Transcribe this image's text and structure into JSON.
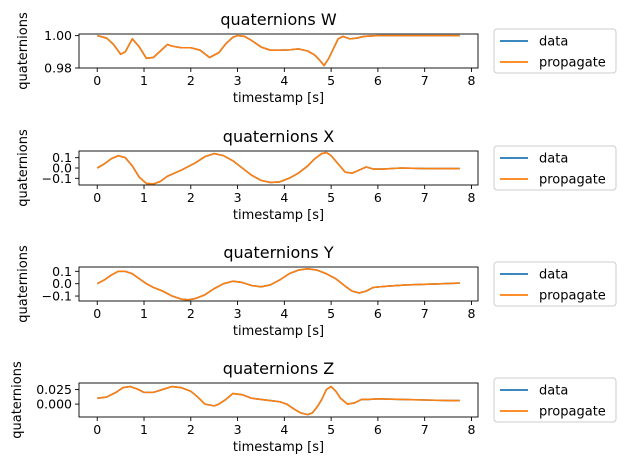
{
  "chart_data": [
    {
      "type": "line",
      "title": "quaternions W",
      "xlabel": "timestamp [s]",
      "ylabel": "quaternions",
      "xlim": [
        -0.39,
        8.14
      ],
      "ylim": [
        0.98,
        1.001
      ],
      "xticks": [
        "0",
        "1",
        "2",
        "3",
        "4",
        "5",
        "6",
        "7",
        "8"
      ],
      "yticks": [
        {
          "value": 0.98,
          "label": "0.98"
        },
        {
          "value": 1.0,
          "label": "1.00"
        }
      ],
      "legend": {
        "position": "outside-right",
        "entries": [
          "data",
          "propagate"
        ]
      },
      "grid": false,
      "x": [
        0.0,
        0.2,
        0.35,
        0.5,
        0.6,
        0.75,
        0.9,
        1.05,
        1.2,
        1.35,
        1.5,
        1.6,
        1.8,
        2.0,
        2.2,
        2.4,
        2.6,
        2.75,
        2.9,
        3.0,
        3.15,
        3.3,
        3.5,
        3.7,
        3.9,
        4.1,
        4.3,
        4.5,
        4.65,
        4.75,
        4.85,
        4.95,
        5.05,
        5.15,
        5.25,
        5.4,
        5.55,
        5.7,
        5.85,
        6.0,
        6.5,
        7.0,
        7.5,
        7.75
      ],
      "series": [
        {
          "name": "data",
          "color": "#1f77b4",
          "values": [
            1.0,
            0.9985,
            0.9945,
            0.9885,
            0.99,
            0.998,
            0.993,
            0.986,
            0.9865,
            0.9905,
            0.9945,
            0.9935,
            0.9925,
            0.9925,
            0.991,
            0.9865,
            0.9895,
            0.995,
            0.999,
            1.0,
            0.9995,
            0.997,
            0.993,
            0.991,
            0.991,
            0.9912,
            0.9918,
            0.9905,
            0.988,
            0.985,
            0.9815,
            0.986,
            0.992,
            0.998,
            0.9995,
            0.998,
            0.9985,
            0.9995,
            0.9998,
            1.0,
            1.0,
            1.0,
            1.0,
            1.0
          ]
        },
        {
          "name": "propagate",
          "color": "#ff7f0e",
          "values": [
            1.0,
            0.9985,
            0.9945,
            0.9885,
            0.99,
            0.998,
            0.993,
            0.986,
            0.9865,
            0.9905,
            0.9945,
            0.9935,
            0.9925,
            0.9925,
            0.991,
            0.9865,
            0.9895,
            0.995,
            0.999,
            1.0,
            0.9995,
            0.997,
            0.993,
            0.991,
            0.991,
            0.9912,
            0.9918,
            0.9905,
            0.988,
            0.985,
            0.9815,
            0.986,
            0.992,
            0.998,
            0.9995,
            0.998,
            0.9985,
            0.9995,
            0.9998,
            1.0,
            1.0,
            1.0,
            1.0,
            1.0
          ]
        }
      ]
    },
    {
      "type": "line",
      "title": "quaternions X",
      "xlabel": "timestamp [s]",
      "ylabel": "quaternions",
      "xlim": [
        -0.39,
        8.14
      ],
      "ylim": [
        -0.165,
        0.165
      ],
      "xticks": [
        "0",
        "1",
        "2",
        "3",
        "4",
        "5",
        "6",
        "7",
        "8"
      ],
      "yticks": [
        {
          "value": 0.1,
          "label": "0.1"
        },
        {
          "value": 0.0,
          "label": "0.0"
        },
        {
          "value": -0.1,
          "label": "−0.1"
        }
      ],
      "legend": {
        "position": "outside-right",
        "entries": [
          "data",
          "propagate"
        ]
      },
      "grid": false,
      "x": [
        0.0,
        0.15,
        0.3,
        0.45,
        0.6,
        0.75,
        0.9,
        1.05,
        1.2,
        1.35,
        1.5,
        1.8,
        2.1,
        2.3,
        2.5,
        2.7,
        2.9,
        3.1,
        3.3,
        3.5,
        3.7,
        3.9,
        4.1,
        4.3,
        4.5,
        4.65,
        4.8,
        4.9,
        5.0,
        5.15,
        5.3,
        5.45,
        5.6,
        5.75,
        5.9,
        6.1,
        6.5,
        7.0,
        7.5,
        7.75
      ],
      "series": [
        {
          "name": "data",
          "color": "#1f77b4",
          "values": [
            0.0,
            0.04,
            0.09,
            0.12,
            0.1,
            0.02,
            -0.09,
            -0.15,
            -0.155,
            -0.13,
            -0.08,
            -0.02,
            0.05,
            0.11,
            0.14,
            0.12,
            0.07,
            0.0,
            -0.07,
            -0.12,
            -0.14,
            -0.135,
            -0.1,
            -0.05,
            0.02,
            0.09,
            0.14,
            0.15,
            0.12,
            0.04,
            -0.04,
            -0.05,
            -0.02,
            0.01,
            -0.01,
            -0.01,
            0.0,
            -0.005,
            -0.005,
            -0.005
          ]
        },
        {
          "name": "propagate",
          "color": "#ff7f0e",
          "values": [
            0.0,
            0.04,
            0.09,
            0.12,
            0.1,
            0.02,
            -0.09,
            -0.15,
            -0.155,
            -0.13,
            -0.08,
            -0.02,
            0.05,
            0.11,
            0.14,
            0.12,
            0.07,
            0.0,
            -0.07,
            -0.12,
            -0.14,
            -0.135,
            -0.1,
            -0.05,
            0.02,
            0.09,
            0.14,
            0.15,
            0.12,
            0.04,
            -0.04,
            -0.05,
            -0.02,
            0.01,
            -0.01,
            -0.01,
            0.0,
            -0.005,
            -0.005,
            -0.005
          ]
        }
      ]
    },
    {
      "type": "line",
      "title": "quaternions Y",
      "xlabel": "timestamp [s]",
      "ylabel": "quaternions",
      "xlim": [
        -0.39,
        8.14
      ],
      "ylim": [
        -0.14,
        0.135
      ],
      "xticks": [
        "0",
        "1",
        "2",
        "3",
        "4",
        "5",
        "6",
        "7",
        "8"
      ],
      "yticks": [
        {
          "value": 0.1,
          "label": "0.1"
        },
        {
          "value": 0.0,
          "label": "0.0"
        },
        {
          "value": -0.1,
          "label": "−0.1"
        }
      ],
      "legend": {
        "position": "outside-right",
        "entries": [
          "data",
          "propagate"
        ]
      },
      "grid": false,
      "x": [
        0.0,
        0.15,
        0.3,
        0.45,
        0.6,
        0.75,
        0.9,
        1.05,
        1.2,
        1.4,
        1.6,
        1.8,
        1.95,
        2.1,
        2.3,
        2.5,
        2.7,
        2.9,
        3.1,
        3.3,
        3.5,
        3.7,
        3.9,
        4.1,
        4.3,
        4.5,
        4.7,
        4.9,
        5.1,
        5.3,
        5.45,
        5.6,
        5.75,
        5.9,
        6.2,
        6.6,
        7.0,
        7.4,
        7.75
      ],
      "series": [
        {
          "name": "data",
          "color": "#1f77b4",
          "values": [
            0.0,
            0.03,
            0.07,
            0.1,
            0.1,
            0.08,
            0.04,
            0.0,
            -0.03,
            -0.06,
            -0.1,
            -0.125,
            -0.13,
            -0.12,
            -0.09,
            -0.04,
            0.0,
            0.02,
            0.01,
            -0.015,
            -0.025,
            -0.01,
            0.03,
            0.08,
            0.11,
            0.12,
            0.11,
            0.08,
            0.04,
            -0.02,
            -0.06,
            -0.075,
            -0.06,
            -0.03,
            -0.02,
            -0.01,
            -0.005,
            0.0,
            0.005
          ]
        },
        {
          "name": "propagate",
          "color": "#ff7f0e",
          "values": [
            0.0,
            0.03,
            0.07,
            0.1,
            0.1,
            0.08,
            0.04,
            0.0,
            -0.03,
            -0.06,
            -0.1,
            -0.125,
            -0.13,
            -0.12,
            -0.09,
            -0.04,
            0.0,
            0.02,
            0.01,
            -0.015,
            -0.025,
            -0.01,
            0.03,
            0.08,
            0.11,
            0.12,
            0.11,
            0.08,
            0.04,
            -0.02,
            -0.06,
            -0.075,
            -0.06,
            -0.03,
            -0.02,
            -0.01,
            -0.005,
            0.0,
            0.005
          ]
        }
      ]
    },
    {
      "type": "line",
      "title": "quaternions Z",
      "xlabel": "timestamp [s]",
      "ylabel": "quaternions",
      "xlim": [
        -0.39,
        8.14
      ],
      "ylim": [
        -0.022,
        0.036
      ],
      "xticks": [
        "0",
        "1",
        "2",
        "3",
        "4",
        "5",
        "6",
        "7",
        "8"
      ],
      "yticks": [
        {
          "value": 0.025,
          "label": "0.025"
        },
        {
          "value": 0.0,
          "label": "0.000"
        }
      ],
      "legend": {
        "position": "outside-right",
        "entries": [
          "data",
          "propagate"
        ]
      },
      "grid": false,
      "x": [
        0.0,
        0.2,
        0.4,
        0.55,
        0.7,
        0.85,
        1.0,
        1.2,
        1.4,
        1.6,
        1.8,
        2.0,
        2.15,
        2.3,
        2.5,
        2.6,
        2.75,
        2.9,
        3.1,
        3.3,
        3.5,
        3.7,
        3.9,
        4.05,
        4.2,
        4.35,
        4.5,
        4.6,
        4.7,
        4.8,
        4.9,
        5.0,
        5.1,
        5.2,
        5.35,
        5.5,
        5.65,
        5.8,
        6.0,
        6.5,
        7.0,
        7.5,
        7.75
      ],
      "series": [
        {
          "name": "data",
          "color": "#1f77b4",
          "values": [
            0.01,
            0.012,
            0.02,
            0.028,
            0.03,
            0.026,
            0.02,
            0.02,
            0.025,
            0.03,
            0.028,
            0.022,
            0.012,
            0.0,
            -0.003,
            0.0,
            0.008,
            0.018,
            0.016,
            0.01,
            0.008,
            0.006,
            0.004,
            0.0,
            -0.008,
            -0.015,
            -0.018,
            -0.015,
            -0.005,
            0.008,
            0.025,
            0.03,
            0.022,
            0.01,
            0.0,
            0.002,
            0.008,
            0.008,
            0.009,
            0.008,
            0.007,
            0.006,
            0.006
          ]
        },
        {
          "name": "propagate",
          "color": "#ff7f0e",
          "values": [
            0.01,
            0.012,
            0.02,
            0.028,
            0.03,
            0.026,
            0.02,
            0.02,
            0.025,
            0.03,
            0.028,
            0.022,
            0.012,
            0.0,
            -0.003,
            0.0,
            0.008,
            0.018,
            0.016,
            0.01,
            0.008,
            0.006,
            0.004,
            0.0,
            -0.008,
            -0.015,
            -0.018,
            -0.015,
            -0.005,
            0.008,
            0.025,
            0.03,
            0.022,
            0.01,
            0.0,
            0.002,
            0.008,
            0.008,
            0.009,
            0.008,
            0.007,
            0.006,
            0.006
          ]
        }
      ]
    }
  ]
}
